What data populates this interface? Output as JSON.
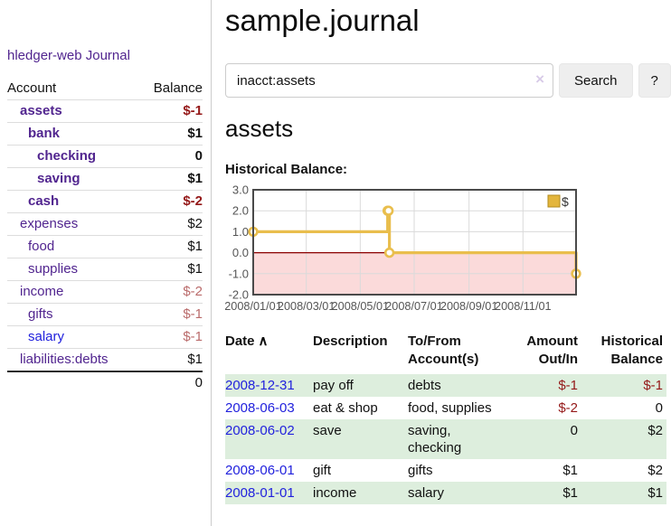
{
  "app": {
    "brand": "hledger-web",
    "journal_nav": "Journal"
  },
  "sidebar": {
    "headers": {
      "account": "Account",
      "balance": "Balance"
    },
    "accounts": [
      {
        "name": "assets",
        "balance": "$-1",
        "level": 1,
        "bold": true,
        "balance_style": "neg-strong",
        "link_color": "purple"
      },
      {
        "name": "bank",
        "balance": "$1",
        "level": 2,
        "bold": true,
        "balance_style": "normal",
        "link_color": "purple"
      },
      {
        "name": "checking",
        "balance": "0",
        "level": 3,
        "bold": true,
        "balance_style": "normal",
        "link_color": "purple"
      },
      {
        "name": "saving",
        "balance": "$1",
        "level": 3,
        "bold": true,
        "balance_style": "normal",
        "link_color": "purple"
      },
      {
        "name": "cash",
        "balance": "$-2",
        "level": 2,
        "bold": true,
        "balance_style": "neg-strong",
        "link_color": "purple"
      },
      {
        "name": "expenses",
        "balance": "$2",
        "level": 1,
        "bold": false,
        "balance_style": "normal",
        "link_color": "purple"
      },
      {
        "name": "food",
        "balance": "$1",
        "level": 2,
        "bold": false,
        "balance_style": "normal",
        "link_color": "purple"
      },
      {
        "name": "supplies",
        "balance": "$1",
        "level": 2,
        "bold": false,
        "balance_style": "normal",
        "link_color": "purple"
      },
      {
        "name": "income",
        "balance": "$-2",
        "level": 1,
        "bold": false,
        "balance_style": "neg-soft",
        "link_color": "purple"
      },
      {
        "name": "gifts",
        "balance": "$-1",
        "level": 2,
        "bold": false,
        "balance_style": "neg-soft",
        "link_color": "purple"
      },
      {
        "name": "salary",
        "balance": "$-1",
        "level": 2,
        "bold": false,
        "balance_style": "neg-soft",
        "link_color": "blue"
      },
      {
        "name": "liabilities:debts",
        "balance": "$1",
        "level": 1,
        "bold": false,
        "balance_style": "normal",
        "link_color": "purple"
      }
    ],
    "total": "0"
  },
  "header": {
    "title": "sample.journal"
  },
  "search": {
    "query": "inacct:assets",
    "clear_icon": "×",
    "button_label": "Search",
    "help_label": "?"
  },
  "account_page": {
    "title": "assets",
    "chart_label": "Historical Balance:"
  },
  "chart_data": {
    "type": "line",
    "title": "Historical Balance",
    "step": "after",
    "x": [
      "2008-01-01",
      "2008-06-01",
      "2008-06-02",
      "2008-06-03",
      "2008-12-31"
    ],
    "y": [
      1,
      2,
      2,
      0,
      -1
    ],
    "xrange": [
      "2008-01-01",
      "2008-12-31"
    ],
    "ylim": [
      -2,
      3
    ],
    "yticks": [
      3,
      2,
      1,
      0,
      -1,
      -2
    ],
    "ytick_labels": [
      "3.0",
      "2.0",
      "1.0",
      "0.0",
      "-1.0",
      "-2.0"
    ],
    "xticks": [
      "2008-01-01",
      "2008-03-01",
      "2008-05-01",
      "2008-07-01",
      "2008-09-01",
      "2008-11-01"
    ],
    "xtick_labels": [
      "2008/01/01",
      "2008/03/01",
      "2008/05/01",
      "2008/07/01",
      "2008/09/01",
      "2008/11/01"
    ],
    "grid": true,
    "legend": [
      {
        "label": "$",
        "color": "#e3b53c"
      }
    ],
    "legend_position": "top-right",
    "colors": {
      "line": "#e9be4d",
      "marker_fill": "#ffffff",
      "negative_region": "#fbdada",
      "zero_line": "#8b0000",
      "grid": "#dadada",
      "frame": "#4a4a4a",
      "axis_text": "#555555",
      "legend_border": "#b08a1e"
    }
  },
  "register": {
    "headers": {
      "date": "Date",
      "description": "Description",
      "accounts": "To/From\nAccount(s)",
      "amount": "Amount\nOut/In",
      "balance": "Historical\nBalance"
    },
    "sort_ascending_icon": "∧",
    "rows": [
      {
        "date": "2008-12-31",
        "description": "pay off",
        "accounts": "debts",
        "amount": "$-1",
        "balance": "$-1",
        "amount_style": "neg-strong",
        "balance_style": "neg-strong"
      },
      {
        "date": "2008-06-03",
        "description": "eat & shop",
        "accounts": "food, supplies",
        "amount": "$-2",
        "balance": "0",
        "amount_style": "neg-strong",
        "balance_style": "normal"
      },
      {
        "date": "2008-06-02",
        "description": "save",
        "accounts": "saving,\nchecking",
        "amount": "0",
        "balance": "$2",
        "amount_style": "normal",
        "balance_style": "normal"
      },
      {
        "date": "2008-06-01",
        "description": "gift",
        "accounts": "gifts",
        "amount": "$1",
        "balance": "$2",
        "amount_style": "normal",
        "balance_style": "normal"
      },
      {
        "date": "2008-01-01",
        "description": "income",
        "accounts": "salary",
        "amount": "$1",
        "balance": "$1",
        "amount_style": "normal",
        "balance_style": "normal"
      }
    ]
  }
}
